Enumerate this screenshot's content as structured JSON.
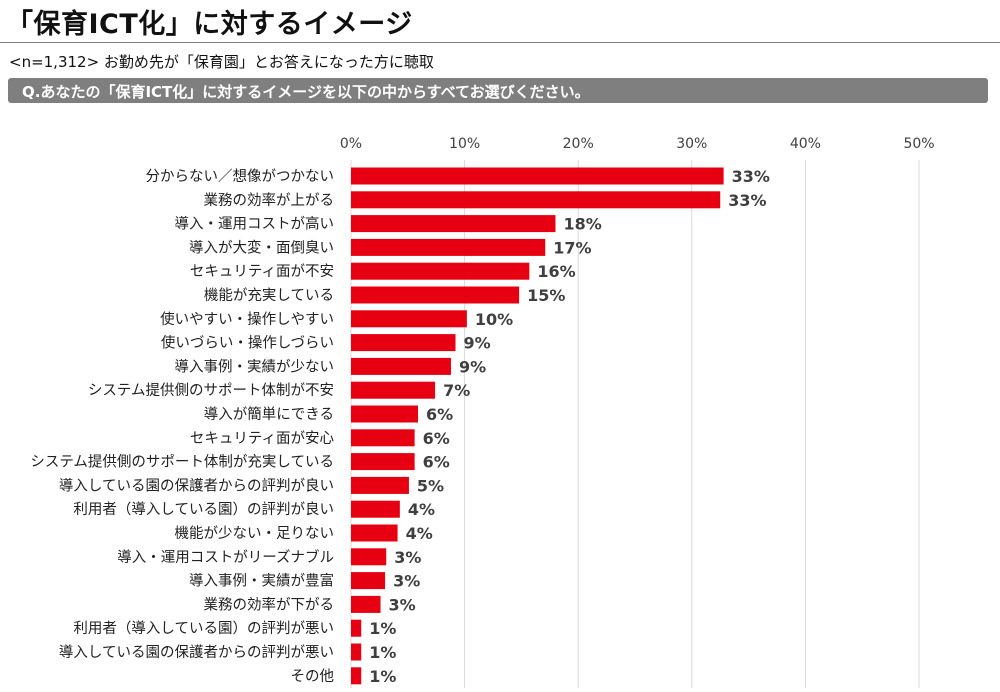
{
  "header": {
    "title": "「保育ICT化」に対するイメージ",
    "sample_note": "<n=1,312>  お勤め先が「保育園」とお答えになった方に聴取",
    "question": "Q.あなたの「保育ICT化」に対するイメージを以下の中からすべてお選びください。"
  },
  "colors": {
    "bar": "#e60012",
    "grid": "#d9d9d9",
    "label_text": "#222222",
    "value_text": "#3f3f3f",
    "question_bar": "#7f7f7f"
  },
  "chart_data": {
    "type": "bar",
    "orientation": "horizontal",
    "xlim": [
      0,
      50
    ],
    "ticks": [
      "0%",
      "10%",
      "20%",
      "30%",
      "40%",
      "50%"
    ],
    "tick_values": [
      0,
      10,
      20,
      30,
      40,
      50
    ],
    "grid": true,
    "legend": false,
    "categories": [
      "分からない／想像がつかない",
      "業務の効率が上がる",
      "導入・運用コストが高い",
      "導入が大変・面倒臭い",
      "セキュリティ面が不安",
      "機能が充実している",
      "使いやすい・操作しやすい",
      "使いづらい・操作しづらい",
      "導入事例・実績が少ない",
      "システム提供側のサポート体制が不安",
      "導入が簡単にできる",
      "セキュリティ面が安心",
      "システム提供側のサポート体制が充実している",
      "導入している園の保護者からの評判が良い",
      "利用者（導入している園）の評判が良い",
      "機能が少ない・足りない",
      "導入・運用コストがリーズナブル",
      "導入事例・実績が豊富",
      "業務の効率が下がる",
      "利用者（導入している園）の評判が悪い",
      "導入している園の保護者からの評判が悪い",
      "その他"
    ],
    "values": [
      33,
      33,
      18,
      17,
      16,
      15,
      10,
      9,
      9,
      7,
      6,
      6,
      6,
      5,
      4,
      4,
      3,
      3,
      3,
      1,
      1,
      1
    ],
    "value_labels": [
      "33%",
      "33%",
      "18%",
      "17%",
      "16%",
      "15%",
      "10%",
      "9%",
      "9%",
      "7%",
      "6%",
      "6%",
      "6%",
      "5%",
      "4%",
      "4%",
      "3%",
      "3%",
      "3%",
      "1%",
      "1%",
      "1%"
    ],
    "plotted_values": [
      32.8,
      32.5,
      18.0,
      17.1,
      15.7,
      14.8,
      10.2,
      9.2,
      8.8,
      7.4,
      5.9,
      5.6,
      5.6,
      5.1,
      4.3,
      4.1,
      3.1,
      3.0,
      2.6,
      0.9,
      0.9,
      0.9
    ]
  }
}
